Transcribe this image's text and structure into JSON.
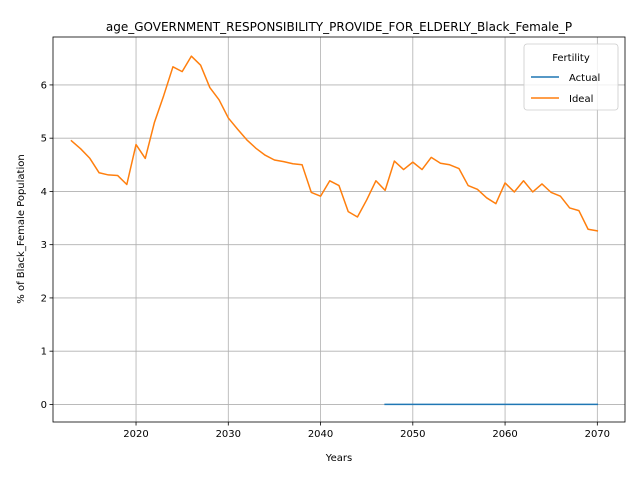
{
  "chart_data": {
    "type": "line",
    "title": "age_GOVERNMENT_RESPONSIBILITY_PROVIDE_FOR_ELDERLY_Black_Female_P",
    "xlabel": "Years",
    "ylabel": "% of Black_Female Population",
    "xlim": [
      2011,
      2073
    ],
    "ylim": [
      -0.33,
      6.9
    ],
    "xticks": [
      2020,
      2030,
      2040,
      2050,
      2060,
      2070
    ],
    "yticks": [
      0,
      1,
      2,
      3,
      4,
      5,
      6
    ],
    "grid": true,
    "legend": {
      "title": "Fertility",
      "placement": "top-right"
    },
    "series": [
      {
        "name": "Actual",
        "color": "#1f77b4",
        "x": [
          2047,
          2048,
          2049,
          2050,
          2051,
          2052,
          2053,
          2054,
          2055,
          2056,
          2057,
          2058,
          2059,
          2060,
          2061,
          2062,
          2063,
          2064,
          2065,
          2066,
          2067,
          2068,
          2069,
          2070
        ],
        "y": [
          0,
          0,
          0,
          0,
          0,
          0,
          0,
          0,
          0,
          0,
          0,
          0,
          0,
          0,
          0,
          0,
          0,
          0,
          0,
          0,
          0,
          0,
          0,
          0
        ]
      },
      {
        "name": "Ideal",
        "color": "#ff7f0e",
        "x": [
          2013,
          2014,
          2015,
          2016,
          2017,
          2018,
          2019,
          2020,
          2021,
          2022,
          2023,
          2024,
          2025,
          2026,
          2027,
          2028,
          2029,
          2030,
          2031,
          2032,
          2033,
          2034,
          2035,
          2036,
          2037,
          2038,
          2039,
          2040,
          2041,
          2042,
          2043,
          2044,
          2045,
          2046,
          2047,
          2048,
          2049,
          2050,
          2051,
          2052,
          2053,
          2054,
          2055,
          2056,
          2057,
          2058,
          2059,
          2060,
          2061,
          2062,
          2063,
          2064,
          2065,
          2066,
          2067,
          2068,
          2069,
          2070
        ],
        "y": [
          4.95,
          4.8,
          4.62,
          4.35,
          4.31,
          4.3,
          4.13,
          4.88,
          4.62,
          5.3,
          5.8,
          6.34,
          6.25,
          6.54,
          6.37,
          5.95,
          5.72,
          5.38,
          5.17,
          4.97,
          4.81,
          4.68,
          4.59,
          4.56,
          4.52,
          4.5,
          3.98,
          3.91,
          4.2,
          4.11,
          3.62,
          3.52,
          3.84,
          4.2,
          4.02,
          4.57,
          4.41,
          4.55,
          4.41,
          4.64,
          4.53,
          4.5,
          4.43,
          4.11,
          4.04,
          3.88,
          3.77,
          4.16,
          3.99,
          4.2,
          3.99,
          4.14,
          3.98,
          3.91,
          3.69,
          3.64,
          3.29,
          3.26
        ]
      }
    ]
  }
}
